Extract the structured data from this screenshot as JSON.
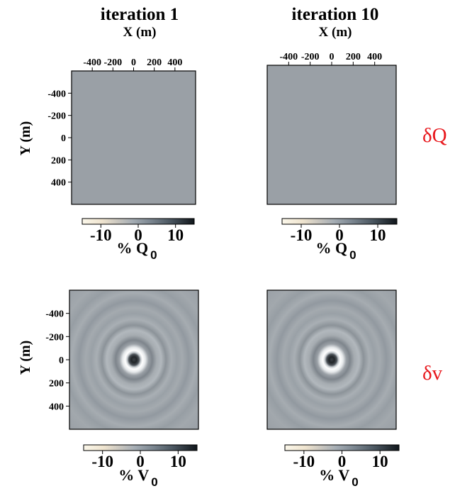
{
  "columns": [
    {
      "title": "iteration 1",
      "xlabel": "X (m)"
    },
    {
      "title": "iteration 10",
      "xlabel": "X (m)"
    }
  ],
  "rows": [
    {
      "label": "δQ",
      "ylabel": "Y (m)",
      "colorbar_label_main": "% Q",
      "colorbar_label_sub": "0"
    },
    {
      "label": "δv",
      "ylabel": "Y (m)",
      "colorbar_label_main": "% V",
      "colorbar_label_sub": "0"
    }
  ],
  "colors": {
    "row_label": "#e8191e",
    "uniform_field": "#9aa0a6"
  },
  "chart_data": [
    {
      "type": "heatmap",
      "panel": "iteration 1 δQ",
      "xlabel": "X (m)",
      "ylabel": "Y (m)",
      "xticks": [
        -400,
        -200,
        0,
        200,
        400
      ],
      "yticks": [
        -400,
        -200,
        0,
        200,
        400
      ],
      "xlim": [
        -600,
        600
      ],
      "ylim": [
        -600,
        600
      ],
      "field": "uniform",
      "value": 0,
      "colorbar": {
        "label": "% Q0",
        "ticks": [
          -10,
          0,
          10
        ],
        "range": [
          -15,
          15
        ]
      }
    },
    {
      "type": "heatmap",
      "panel": "iteration 10 δQ",
      "xlabel": "X (m)",
      "xticks": [
        -400,
        -200,
        0,
        200,
        400
      ],
      "xlim": [
        -600,
        600
      ],
      "ylim": [
        -600,
        600
      ],
      "field": "uniform",
      "value": 0,
      "colorbar": {
        "label": "% Q0",
        "ticks": [
          -10,
          0,
          10
        ],
        "range": [
          -15,
          15
        ]
      }
    },
    {
      "type": "heatmap",
      "panel": "iteration 1 δv",
      "ylabel": "Y (m)",
      "yticks": [
        -400,
        -200,
        0,
        200,
        400
      ],
      "xlim": [
        -600,
        600
      ],
      "ylim": [
        -600,
        600
      ],
      "field": "radial rings",
      "center": [
        0,
        0
      ],
      "colorbar": {
        "label": "% V0",
        "ticks": [
          -10,
          0,
          10
        ],
        "range": [
          -15,
          15
        ]
      }
    },
    {
      "type": "heatmap",
      "panel": "iteration 10 δv",
      "xlim": [
        -600,
        600
      ],
      "ylim": [
        -600,
        600
      ],
      "field": "radial rings",
      "center": [
        0,
        0
      ],
      "colorbar": {
        "label": "% V0",
        "ticks": [
          -10,
          0,
          10
        ],
        "range": [
          -15,
          15
        ]
      }
    }
  ]
}
